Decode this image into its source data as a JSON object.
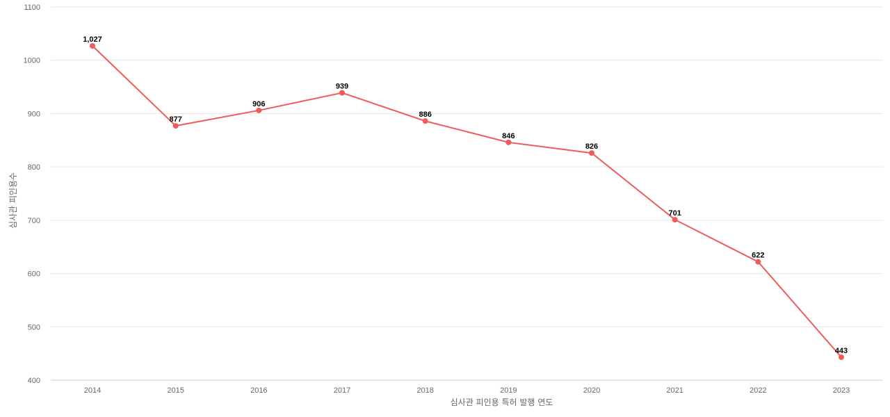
{
  "chart_data": {
    "type": "line",
    "x": [
      "2014",
      "2015",
      "2016",
      "2017",
      "2018",
      "2019",
      "2020",
      "2021",
      "2022",
      "2023"
    ],
    "series": [
      {
        "values": [
          1027,
          877,
          906,
          939,
          886,
          846,
          826,
          701,
          622,
          443
        ],
        "data_labels": [
          "1,027",
          "877",
          "906",
          "939",
          "886",
          "846",
          "826",
          "701",
          "622",
          "443"
        ],
        "color": "#f05a5a"
      }
    ],
    "xlabel": "심사관 피인용 특허 발행 연도",
    "ylabel": "심사관 피인용수",
    "ylim": [
      400,
      1100
    ],
    "yticks": [
      400,
      500,
      600,
      700,
      800,
      900,
      1000,
      1100
    ],
    "ytick_labels": [
      "400",
      "500",
      "600",
      "700",
      "800",
      "900",
      "1000",
      "1100"
    ],
    "grid": true,
    "legend": "none"
  }
}
